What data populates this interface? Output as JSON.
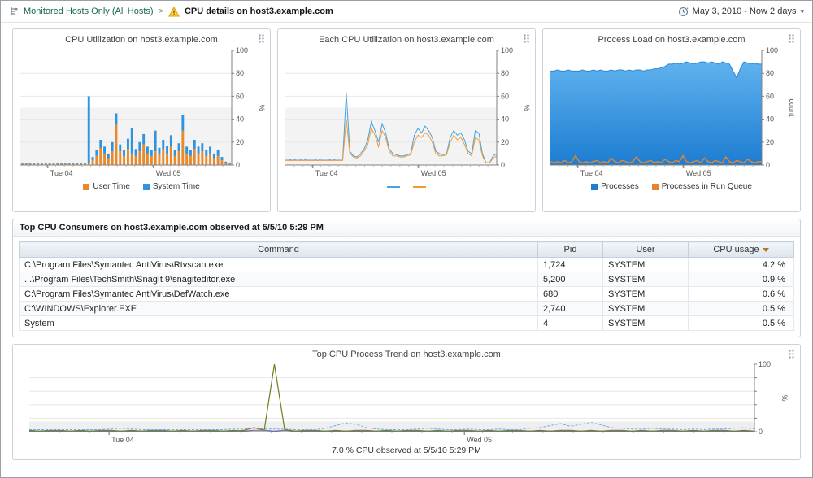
{
  "header": {
    "breadcrumb_root": "Monitored Hosts Only (All Hosts)",
    "separator": ">",
    "page_title": "CPU details on host3.example.com",
    "time_range": "May 3, 2010 - Now 2 days"
  },
  "chart_data": [
    {
      "id": "cpu-utilization",
      "title": "CPU Utilization on host3.example.com",
      "type": "stacked_bar",
      "ylim": [
        0,
        100
      ],
      "ylabel": "%",
      "yticks": [
        {
          "v": 0,
          "label": "0"
        },
        {
          "v": 20,
          "label": "20"
        },
        {
          "v": 40,
          "label": "40"
        },
        {
          "v": 60,
          "label": "60"
        },
        {
          "v": 80,
          "label": "80"
        },
        {
          "v": 100,
          "label": "100"
        }
      ],
      "xticks": [
        {
          "label": "Tue 04",
          "pos": 0.13
        },
        {
          "label": "Wed 05",
          "pos": 0.63
        }
      ],
      "bands": [
        [
          0,
          50
        ]
      ],
      "band_color": "#f3f3f3",
      "series": [
        {
          "name": "User Time",
          "color": "#e8892c",
          "values": [
            1,
            1,
            1,
            1,
            1,
            1,
            1,
            1,
            1,
            1,
            1,
            1,
            1,
            1,
            1,
            1,
            1,
            2,
            4,
            8,
            15,
            10,
            6,
            12,
            35,
            12,
            8,
            14,
            10,
            8,
            12,
            18,
            10,
            8,
            12,
            9,
            14,
            10,
            16,
            8,
            12,
            30,
            10,
            8,
            14,
            10,
            12,
            8,
            10,
            6,
            8,
            4,
            2,
            1
          ]
        },
        {
          "name": "System Time",
          "color": "#2f93dd",
          "values": [
            1,
            1,
            1,
            1,
            1,
            1,
            1,
            1,
            1,
            1,
            1,
            1,
            1,
            1,
            1,
            1,
            1,
            58,
            3,
            5,
            7,
            6,
            4,
            8,
            10,
            6,
            5,
            9,
            22,
            6,
            8,
            9,
            6,
            5,
            18,
            6,
            8,
            7,
            10,
            5,
            7,
            14,
            6,
            5,
            8,
            6,
            7,
            5,
            6,
            4,
            5,
            3,
            1,
            1
          ]
        }
      ]
    },
    {
      "id": "each-cpu-utilization",
      "title": "Each CPU Utilization on host3.example.com",
      "type": "line",
      "ylim": [
        0,
        100
      ],
      "ylabel": "%",
      "yticks": [
        {
          "v": 0,
          "label": "0"
        },
        {
          "v": 20,
          "label": "20"
        },
        {
          "v": 40,
          "label": "40"
        },
        {
          "v": 60,
          "label": "60"
        },
        {
          "v": 80,
          "label": "80"
        },
        {
          "v": 100,
          "label": "100"
        }
      ],
      "xticks": [
        {
          "label": "Tue 04",
          "pos": 0.13
        },
        {
          "label": "Wed 05",
          "pos": 0.63
        }
      ],
      "bands": [
        [
          0,
          50
        ]
      ],
      "band_color": "#f3f3f3",
      "series": [
        {
          "name": "",
          "color": "#4aa3df",
          "width": 1,
          "values": [
            5,
            5,
            4,
            5,
            5,
            4,
            5,
            5,
            5,
            4,
            5,
            5,
            5,
            4,
            5,
            5,
            5,
            63,
            12,
            8,
            7,
            10,
            14,
            22,
            38,
            30,
            20,
            36,
            28,
            14,
            10,
            9,
            8,
            8,
            9,
            10,
            26,
            32,
            28,
            34,
            30,
            24,
            12,
            10,
            9,
            10,
            24,
            30,
            26,
            28,
            22,
            12,
            10,
            30,
            28,
            10,
            2,
            2,
            8,
            10
          ]
        },
        {
          "name": "",
          "color": "#ef9b3a",
          "width": 1,
          "values": [
            4,
            4,
            4,
            4,
            4,
            4,
            4,
            4,
            4,
            4,
            4,
            4,
            4,
            4,
            4,
            4,
            4,
            40,
            10,
            7,
            6,
            8,
            12,
            18,
            32,
            26,
            16,
            30,
            24,
            12,
            8,
            8,
            7,
            7,
            8,
            9,
            20,
            26,
            24,
            28,
            26,
            20,
            10,
            8,
            8,
            9,
            20,
            26,
            22,
            24,
            18,
            10,
            8,
            24,
            22,
            8,
            2,
            2,
            6,
            8
          ]
        }
      ]
    },
    {
      "id": "process-load",
      "title": "Process Load on host3.example.com",
      "type": "line",
      "ylim": [
        0,
        100
      ],
      "ylabel": "count",
      "yticks": [
        {
          "v": 0,
          "label": "0"
        },
        {
          "v": 20,
          "label": "20"
        },
        {
          "v": 40,
          "label": "40"
        },
        {
          "v": 60,
          "label": "60"
        },
        {
          "v": 80,
          "label": "80"
        },
        {
          "v": 100,
          "label": "100"
        }
      ],
      "xticks": [
        {
          "label": "Tue 04",
          "pos": 0.13
        },
        {
          "label": "Wed 05",
          "pos": 0.63
        }
      ],
      "bands": [
        [
          0,
          50
        ]
      ],
      "band_color": "#f3f3f3",
      "series": [
        {
          "name": "Processes",
          "color": "#5fb2ee",
          "color2": "#1d7dd2",
          "stroke": "#2b8ad6",
          "style": "area",
          "values": [
            82,
            82,
            83,
            82,
            82,
            83,
            82,
            82,
            82,
            83,
            82,
            82,
            83,
            82,
            83,
            82,
            82,
            83,
            82,
            83,
            83,
            82,
            83,
            82,
            83,
            83,
            82,
            83,
            83,
            84,
            84,
            85,
            86,
            88,
            88,
            89,
            88,
            89,
            90,
            89,
            88,
            89,
            90,
            90,
            89,
            90,
            89,
            88,
            90,
            89,
            88,
            82,
            76,
            84,
            90,
            89,
            88,
            89,
            88,
            88
          ]
        },
        {
          "name": "Processes in Run Queue",
          "color": "#e8832a",
          "width": 1.5,
          "values": [
            3,
            2,
            3,
            2,
            4,
            2,
            3,
            8,
            3,
            2,
            3,
            2,
            3,
            4,
            2,
            3,
            2,
            6,
            3,
            2,
            4,
            3,
            2,
            3,
            7,
            3,
            2,
            3,
            4,
            2,
            3,
            2,
            5,
            3,
            2,
            4,
            3,
            8,
            3,
            2,
            3,
            4,
            2,
            6,
            3,
            2,
            4,
            3,
            2,
            7,
            3,
            2,
            4,
            3,
            2,
            5,
            3,
            2,
            3,
            3
          ]
        }
      ]
    },
    {
      "id": "top-cpu-process-trend",
      "title": "Top CPU Process Trend on host3.example.com",
      "caption": "7.0 % CPU observed at 5/5/10 5:29 PM",
      "type": "line",
      "ylim": [
        0,
        100
      ],
      "ylabel": "%",
      "yticks": [
        {
          "v": 0,
          "label": "0"
        },
        {
          "v": 20,
          "label": ""
        },
        {
          "v": 40,
          "label": ""
        },
        {
          "v": 60,
          "label": ""
        },
        {
          "v": 80,
          "label": ""
        },
        {
          "v": 100,
          "label": "100"
        }
      ],
      "xticks": [
        {
          "label": "Tue 04",
          "pos": 0.11
        },
        {
          "label": "Wed 05",
          "pos": 0.6
        }
      ],
      "bands": [
        [
          0,
          15
        ]
      ],
      "band_color": "#efefef",
      "margins": {
        "l": 10,
        "r": 46,
        "t": 5,
        "b": 16
      },
      "series": [
        {
          "name": "",
          "color": "#7b5ea7",
          "width": 1,
          "values": [
            2,
            1,
            2,
            2,
            1,
            2,
            1,
            2,
            2,
            1,
            2,
            1,
            2,
            2,
            1,
            2,
            1,
            2,
            2,
            1,
            2,
            1,
            2,
            2,
            1,
            2,
            1,
            2,
            2,
            1,
            2,
            1,
            2,
            2,
            1,
            2,
            1,
            2,
            2,
            1,
            2,
            1,
            2,
            2,
            1,
            2,
            1,
            2,
            2,
            1,
            2,
            1,
            2,
            2,
            1,
            2,
            1,
            2,
            2,
            1,
            2,
            1,
            2,
            2,
            1,
            2,
            1,
            2,
            2,
            1,
            2,
            1
          ]
        },
        {
          "name": "",
          "color": "#5bb7e8",
          "width": 1,
          "dash": "3,2",
          "values": [
            3,
            3,
            3,
            3,
            3,
            3,
            3,
            3,
            4,
            5,
            4,
            3,
            3,
            3,
            3,
            3,
            3,
            3,
            3,
            3,
            4,
            4,
            5,
            4,
            4,
            4,
            3,
            3,
            3,
            5,
            9,
            13,
            11,
            6,
            4,
            3,
            3,
            3,
            4,
            5,
            4,
            3,
            3,
            4,
            3,
            3,
            4,
            3,
            3,
            5,
            6,
            9,
            12,
            8,
            11,
            14,
            10,
            6,
            5,
            4,
            4,
            5,
            4,
            4,
            3,
            4,
            3,
            4,
            4,
            5,
            6,
            4
          ]
        },
        {
          "name": "",
          "color": "#6d7f1f",
          "width": 1.2,
          "values": [
            1,
            1,
            1,
            1,
            1,
            1,
            1,
            1,
            1,
            1,
            1,
            1,
            1,
            1,
            1,
            1,
            1,
            1,
            1,
            1,
            1,
            2,
            6,
            2,
            100,
            3,
            1,
            1,
            1,
            1,
            1,
            1,
            1,
            1,
            1,
            1,
            1,
            1,
            1,
            1,
            1,
            1,
            1,
            1,
            1,
            1,
            1,
            1,
            1,
            1,
            1,
            1,
            1,
            1,
            1,
            1,
            1,
            1,
            1,
            1,
            1,
            1,
            1,
            1,
            1,
            1,
            1,
            1,
            1,
            1,
            1,
            1
          ]
        }
      ]
    }
  ],
  "table": {
    "title": "Top CPU Consumers on host3.example.com observed at 5/5/10 5:29 PM",
    "columns": [
      "Command",
      "Pid",
      "User",
      "CPU usage"
    ],
    "sort_column": "CPU usage",
    "sort_direction": "desc",
    "rows": [
      {
        "command": "C:\\Program Files\\Symantec AntiVirus\\Rtvscan.exe",
        "pid": "1,724",
        "user": "SYSTEM",
        "cpu": "4.2 %"
      },
      {
        "command": "...\\Program Files\\TechSmith\\SnagIt 9\\snagiteditor.exe",
        "pid": "5,200",
        "user": "SYSTEM",
        "cpu": "0.9 %"
      },
      {
        "command": "C:\\Program Files\\Symantec AntiVirus\\DefWatch.exe",
        "pid": "680",
        "user": "SYSTEM",
        "cpu": "0.6 %"
      },
      {
        "command": "C:\\WINDOWS\\Explorer.EXE",
        "pid": "2,740",
        "user": "SYSTEM",
        "cpu": "0.5 %"
      },
      {
        "command": "System",
        "pid": "4",
        "user": "SYSTEM",
        "cpu": "0.5 %"
      }
    ]
  }
}
